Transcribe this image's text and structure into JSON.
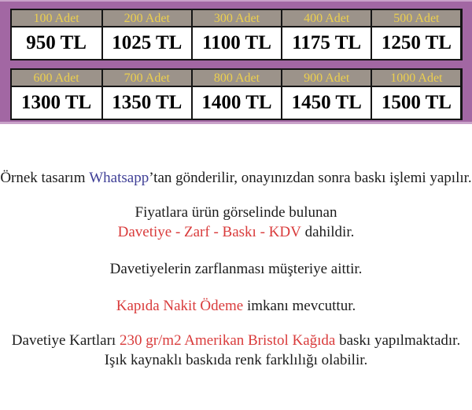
{
  "panel": {
    "bg_color": "#a267a3",
    "edge_color": "#c9a2c9",
    "header_bg": "#9c938a",
    "header_text_color": "#edd04e",
    "price_text_color": "#000000",
    "tables": [
      {
        "cells": [
          {
            "qty": "100 Adet",
            "price": "950 TL"
          },
          {
            "qty": "200 Adet",
            "price": "1025 TL"
          },
          {
            "qty": "300 Adet",
            "price": "1100 TL"
          },
          {
            "qty": "400 Adet",
            "price": "1175 TL"
          },
          {
            "qty": "500 Adet",
            "price": "1250 TL"
          }
        ]
      },
      {
        "cells": [
          {
            "qty": "600 Adet",
            "price": "1300 TL"
          },
          {
            "qty": "700 Adet",
            "price": "1350 TL"
          },
          {
            "qty": "800 Adet",
            "price": "1400 TL"
          },
          {
            "qty": "900 Adet",
            "price": "1450 TL"
          },
          {
            "qty": "1000 Adet",
            "price": "1500 TL"
          }
        ]
      }
    ]
  },
  "notes": {
    "accent_red": "#d93b3b",
    "brand_blue": "#3f3f96",
    "line1": {
      "pre": "Örnek tasarım ",
      "brand": "Whatsapp",
      "post": "’tan gönderilir, onayınızdan sonra baskı işlemi yapılır."
    },
    "line2": "Fiyatlara ürün görselinde bulunan",
    "line3": {
      "red": "Davetiye - Zarf - Baskı - KDV",
      "post": " dahildir."
    },
    "line4": "Davetiyelerin zarflanması müşteriye aittir.",
    "line5": {
      "red": "Kapıda Nakit Ödeme",
      "post": " imkanı mevcuttur."
    },
    "line6": {
      "pre": "Davetiye Kartları ",
      "red": "230 gr/m2 Amerikan Bristol Kağıda",
      "post": " baskı yapılmaktadır."
    },
    "line7": "Işık kaynaklı baskıda renk farklılığı olabilir."
  }
}
